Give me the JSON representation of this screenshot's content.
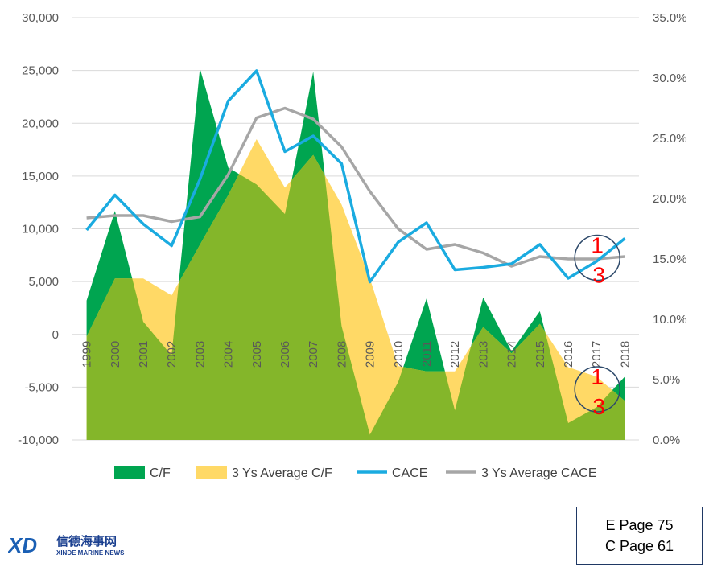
{
  "chart_data": {
    "type": "area",
    "categories": [
      "1999",
      "2000",
      "2001",
      "2002",
      "2003",
      "2004",
      "2005",
      "2006",
      "2007",
      "2008",
      "2009",
      "2010",
      "2011",
      "2012",
      "2013",
      "2014",
      "2015",
      "2016",
      "2017",
      "2018"
    ],
    "series": [
      {
        "name": "C/F",
        "type": "area",
        "axis": "left",
        "values": [
          3200,
          11700,
          1200,
          -2000,
          25200,
          15800,
          14200,
          11400,
          24900,
          800,
          -9500,
          -4500,
          3400,
          -7200,
          3500,
          -1600,
          2200,
          -8400,
          -6900,
          -4000
        ]
      },
      {
        "name": "3 Ys Average C/F",
        "type": "area",
        "axis": "left",
        "values": [
          -200,
          5300,
          5300,
          3700,
          8500,
          13200,
          18500,
          13900,
          17000,
          12300,
          5300,
          -3000,
          -3500,
          -3500,
          700,
          -1800,
          1000,
          -3100,
          -4000,
          -6300
        ]
      },
      {
        "name": "CACE",
        "type": "line",
        "axis": "right",
        "values": [
          17.4,
          20.3,
          17.9,
          16.1,
          21.6,
          28.1,
          30.6,
          23.9,
          25.2,
          22.9,
          13.1,
          16.4,
          18.0,
          14.1,
          14.3,
          14.6,
          16.2,
          13.4,
          14.8,
          16.7
        ]
      },
      {
        "name": "3 Ys Average CACE",
        "type": "line",
        "axis": "right",
        "values": [
          18.4,
          18.6,
          18.6,
          18.1,
          18.5,
          22.0,
          26.7,
          27.5,
          26.6,
          24.3,
          20.6,
          17.5,
          15.8,
          16.2,
          15.5,
          14.4,
          15.2,
          15.0,
          15.0,
          15.2
        ]
      }
    ],
    "y_left": {
      "min": -10000,
      "max": 30000,
      "step": 5000,
      "ticks": [
        "-10,000",
        "-5,000",
        "0",
        "5,000",
        "10,000",
        "15,000",
        "20,000",
        "25,000",
        "30,000"
      ]
    },
    "y_right": {
      "min": 0,
      "max": 35,
      "step": 5,
      "ticks": [
        "0.0%",
        "5.0%",
        "10.0%",
        "15.0%",
        "20.0%",
        "25.0%",
        "30.0%",
        "35.0%"
      ]
    },
    "legend_position": "bottom",
    "grid": "horizontal",
    "colors": {
      "cf": "#00a550",
      "avg_cf": "#ffd966",
      "overlap": "#84b62a",
      "cace": "#1aabe0",
      "avg_cace": "#a6a6a6",
      "grid": "#d9d9d9",
      "circle": "#2e4a6b",
      "anno": "#ff0000"
    },
    "annotations": [
      {
        "year": "2017",
        "axis": "right",
        "value": 15.1,
        "top": "1",
        "bottom": "3"
      },
      {
        "year": "2017",
        "axis": "left",
        "value": -5200,
        "top": "1",
        "bottom": "3"
      }
    ]
  },
  "page_ref": {
    "line1": "E Page 75",
    "line2": "C Page 61"
  },
  "logo": {
    "chinese": "信德海事网",
    "english": "XINDE MARINE NEWS",
    "mark": "XD"
  }
}
